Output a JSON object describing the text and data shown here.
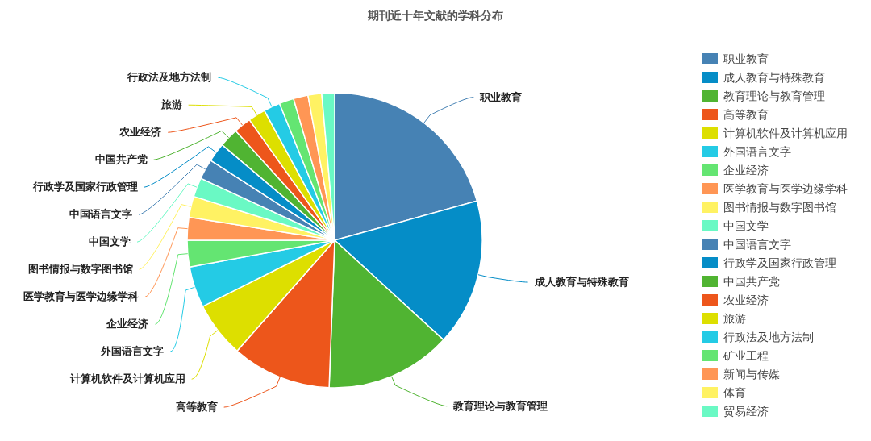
{
  "chart_data": {
    "type": "pie",
    "title": "期刊近十年文献的学科分布",
    "categories": [
      "职业教育",
      "成人教育与特殊教育",
      "教育理论与教育管理",
      "高等教育",
      "计算机软件及计算机应用",
      "外国语言文字",
      "企业经济",
      "医学教育与医学边缘学科",
      "图书情报与数字图书馆",
      "中国文学",
      "中国语言文字",
      "行政学及国家行政管理",
      "中国共产党",
      "农业经济",
      "旅游",
      "行政法及地方法制",
      "矿业工程",
      "新闻与传媒",
      "体育",
      "贸易经济"
    ],
    "values": [
      20.7,
      16.1,
      13.8,
      10.9,
      6.1,
      4.5,
      2.9,
      2.5,
      2.3,
      2.1,
      2.2,
      2.1,
      2.1,
      1.9,
      1.9,
      1.8,
      1.6,
      1.6,
      1.5,
      1.4
    ],
    "colors": [
      "#4682b4",
      "#058dc7",
      "#50b432",
      "#ed561b",
      "#dddf00",
      "#24cbe5",
      "#64e572",
      "#ff9655",
      "#fff263",
      "#6af9c4",
      "#4682b4",
      "#058dc7",
      "#50b432",
      "#ed561b",
      "#dddf00",
      "#24cbe5",
      "#64e572",
      "#ff9655",
      "#fff263",
      "#6af9c4"
    ],
    "value_labels": [
      "职业教育",
      "成人教育与特殊教育",
      "教育理论与教育管理",
      "高等教育",
      "计算机软件及计算机应用",
      "外国语言文字",
      "企业经济",
      "医学教育与医学边缘学科",
      "图书情报与数字图书馆",
      "中国文学",
      "中国语言文字",
      "行政学及国家行政管理",
      "中国共产党",
      "农业经济",
      "旅游",
      "行政法及地方法制",
      null,
      null,
      null,
      null
    ],
    "legend": "right"
  }
}
